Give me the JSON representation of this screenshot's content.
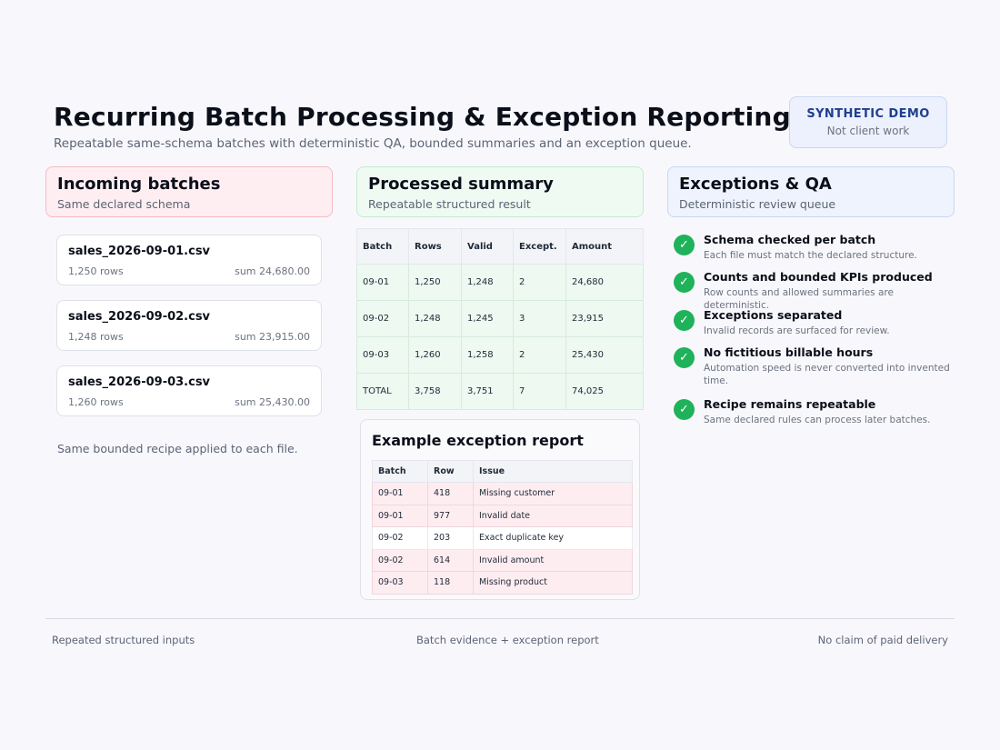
{
  "header": {
    "title": "Recurring Batch Processing & Exception Reporting I",
    "subtitle": "Repeatable same-schema batches with deterministic QA, bounded summaries and an exception queue."
  },
  "badge": {
    "title": "SYNTHETIC DEMO",
    "subtitle": "Not client work"
  },
  "incoming": {
    "title": "Incoming batches",
    "subtitle": "Same declared schema",
    "files": [
      {
        "name": "sales_2026-09-01.csv",
        "rows": "1,250 rows",
        "sum": "sum 24,680.00"
      },
      {
        "name": "sales_2026-09-02.csv",
        "rows": "1,248 rows",
        "sum": "sum 23,915.00"
      },
      {
        "name": "sales_2026-09-03.csv",
        "rows": "1,260 rows",
        "sum": "sum 25,430.00"
      }
    ],
    "note": "Same bounded recipe applied to each file."
  },
  "summary": {
    "title": "Processed summary",
    "subtitle": "Repeatable structured result",
    "columns": [
      "Batch",
      "Rows",
      "Valid",
      "Except.",
      "Amount"
    ],
    "rows": [
      [
        "09-01",
        "1,250",
        "1,248",
        "2",
        "24,680"
      ],
      [
        "09-02",
        "1,248",
        "1,245",
        "3",
        "23,915"
      ],
      [
        "09-03",
        "1,260",
        "1,258",
        "2",
        "25,430"
      ],
      [
        "TOTAL",
        "3,758",
        "3,751",
        "7",
        "74,025"
      ]
    ]
  },
  "exception_report": {
    "title": "Example exception report",
    "columns": [
      "Batch",
      "Row",
      "Issue"
    ],
    "rows": [
      [
        "09-01",
        "418",
        "Missing customer"
      ],
      [
        "09-01",
        "977",
        "Invalid date"
      ],
      [
        "09-02",
        "203",
        "Exact duplicate key"
      ],
      [
        "09-02",
        "614",
        "Invalid amount"
      ],
      [
        "09-03",
        "118",
        "Missing product"
      ]
    ]
  },
  "qa": {
    "title": "Exceptions & QA",
    "subtitle": "Deterministic review queue",
    "items": [
      {
        "title": "Schema checked per batch",
        "desc": "Each file must match the declared structure."
      },
      {
        "title": "Counts and bounded KPIs produced",
        "desc": "Row counts and allowed summaries are deterministic."
      },
      {
        "title": "Exceptions separated",
        "desc": "Invalid records are surfaced for review."
      },
      {
        "title": "No fictitious billable hours",
        "desc": "Automation speed is never converted into invented time."
      },
      {
        "title": "Recipe remains repeatable",
        "desc": "Same declared rules can process later batches."
      }
    ],
    "check_color": "#1fb25a"
  },
  "footer": {
    "left": "Repeated structured inputs",
    "center": "Batch evidence + exception report",
    "right": "No claim of paid delivery"
  }
}
